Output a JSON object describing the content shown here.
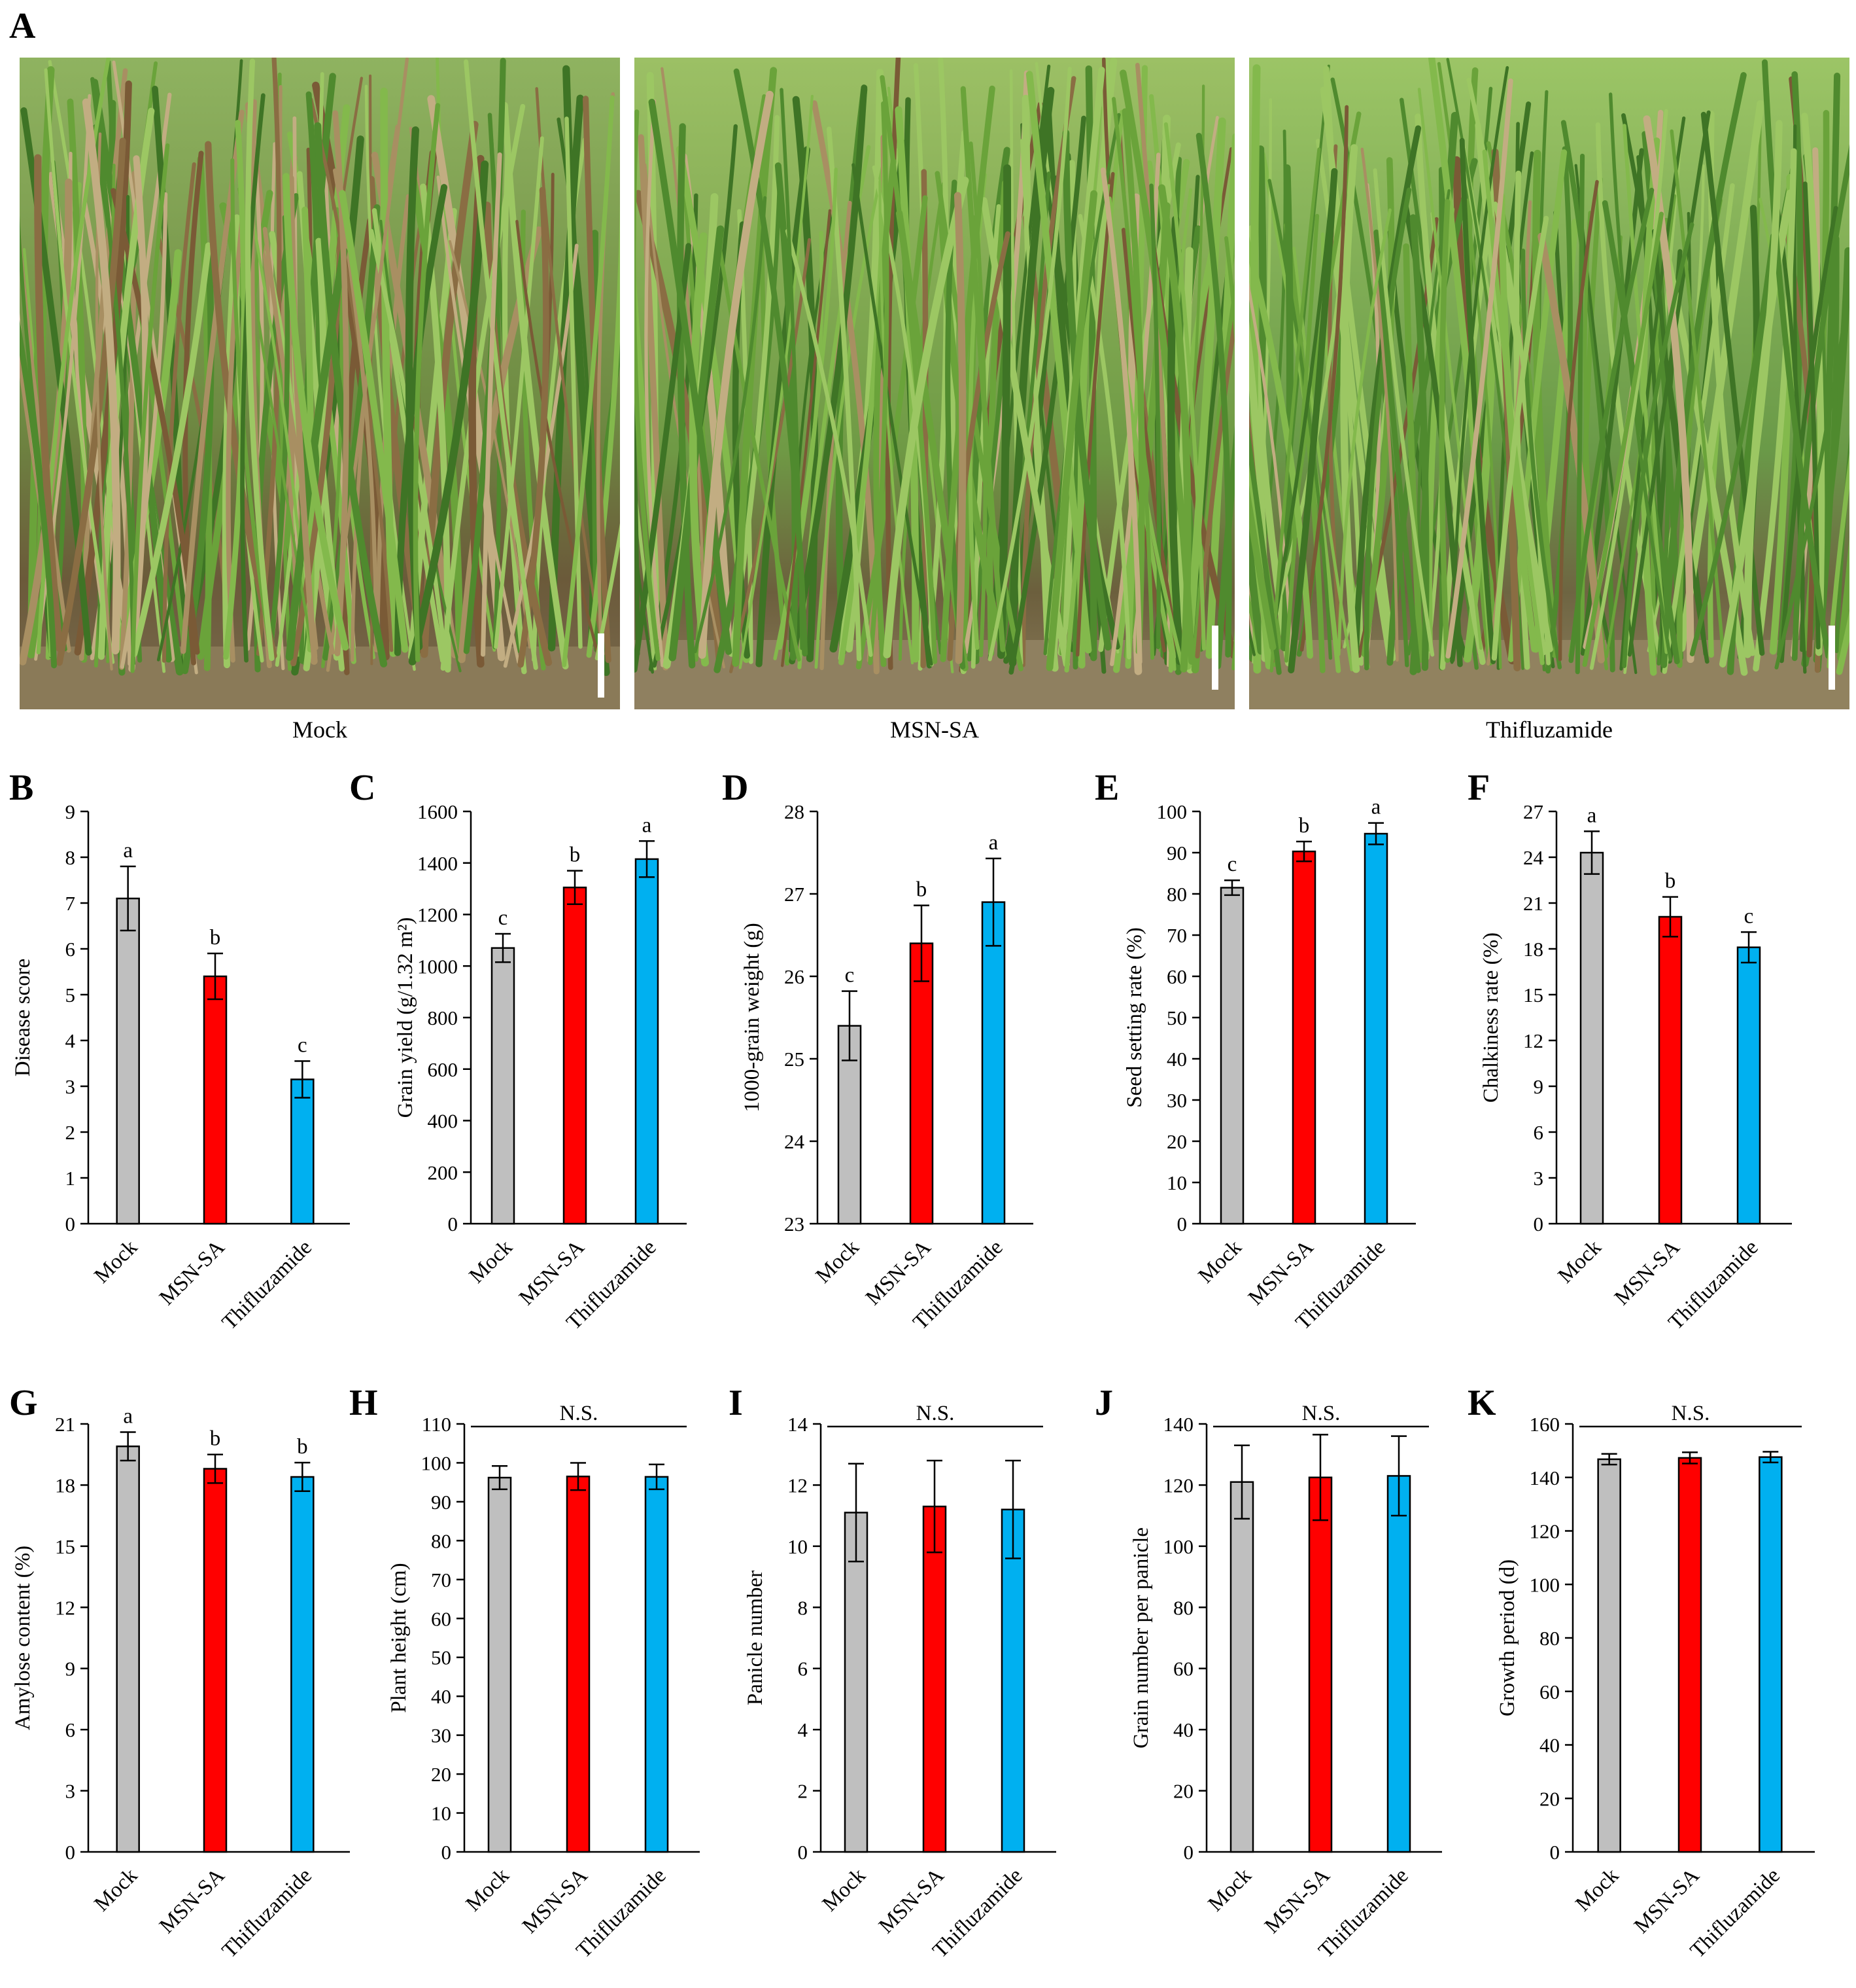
{
  "panel_labels": [
    "A",
    "B",
    "C",
    "D",
    "E",
    "F",
    "G",
    "H",
    "I",
    "J",
    "K"
  ],
  "colors": {
    "mock": "#bfbfbf",
    "msn_sa": "#ff0000",
    "thifluzamide": "#00b0f0",
    "axis": "#000000"
  },
  "photos": [
    {
      "caption": "Mock",
      "letter": "A"
    },
    {
      "caption": "MSN-SA"
    },
    {
      "caption": "Thifluzamide"
    }
  ],
  "chart_data": [
    {
      "letter": "B",
      "type": "bar",
      "categories": [
        "Mock",
        "MSN-SA",
        "Thifluzamide"
      ],
      "values": [
        7.1,
        5.4,
        3.15
      ],
      "errors": [
        0.7,
        0.5,
        0.4
      ],
      "sig": [
        "a",
        "b",
        "c"
      ],
      "ylabel": "Disease score",
      "ylim": [
        0,
        9
      ],
      "ticks": [
        0,
        1,
        2,
        3,
        4,
        5,
        6,
        7,
        8,
        9
      ],
      "ns": ""
    },
    {
      "letter": "C",
      "type": "bar",
      "categories": [
        "Mock",
        "MSN-SA",
        "Thifluzamide"
      ],
      "values": [
        1070,
        1305,
        1415
      ],
      "errors": [
        55,
        65,
        70
      ],
      "sig": [
        "c",
        "b",
        "a"
      ],
      "ylabel": "Grain yield (g/1.32 m²)",
      "ylim": [
        0,
        1600
      ],
      "ticks": [
        0,
        200,
        400,
        600,
        800,
        1000,
        1200,
        1400,
        1600
      ],
      "ns": ""
    },
    {
      "letter": "D",
      "type": "bar",
      "categories": [
        "Mock",
        "MSN-SA",
        "Thifluzamide"
      ],
      "values": [
        25.4,
        26.4,
        26.9
      ],
      "errors": [
        0.42,
        0.46,
        0.53
      ],
      "sig": [
        "c",
        "b",
        "a"
      ],
      "ylabel": "1000-grain weight (g)",
      "ylim": [
        23,
        28
      ],
      "ticks": [
        23,
        24,
        25,
        26,
        27,
        28
      ],
      "ns": ""
    },
    {
      "letter": "E",
      "type": "bar",
      "categories": [
        "Mock",
        "MSN-SA",
        "Thifluzamide"
      ],
      "values": [
        81.5,
        90.3,
        94.6
      ],
      "errors": [
        1.8,
        2.4,
        2.6
      ],
      "sig": [
        "c",
        "b",
        "a"
      ],
      "ylabel": "Seed setting rate (%)",
      "ylim": [
        0,
        100
      ],
      "ticks": [
        0,
        10,
        20,
        30,
        40,
        50,
        60,
        70,
        80,
        90,
        100
      ],
      "ns": ""
    },
    {
      "letter": "F",
      "type": "bar",
      "categories": [
        "Mock",
        "MSN-SA",
        "Thifluzamide"
      ],
      "values": [
        24.3,
        20.1,
        18.1
      ],
      "errors": [
        1.4,
        1.3,
        1.0
      ],
      "sig": [
        "a",
        "b",
        "c"
      ],
      "ylabel": "Chalkiness rate (%)",
      "ylim": [
        0,
        27
      ],
      "ticks": [
        0,
        3,
        6,
        9,
        12,
        15,
        18,
        21,
        24,
        27
      ],
      "ns": ""
    },
    {
      "letter": "G",
      "type": "bar",
      "categories": [
        "Mock",
        "MSN-SA",
        "Thifluzamide"
      ],
      "values": [
        19.9,
        18.8,
        18.4
      ],
      "errors": [
        0.7,
        0.7,
        0.7
      ],
      "sig": [
        "a",
        "b",
        "b"
      ],
      "ylabel": "Amylose content (%)",
      "ylim": [
        0,
        21
      ],
      "ticks": [
        0,
        3,
        6,
        9,
        12,
        15,
        18,
        21
      ],
      "ns": ""
    },
    {
      "letter": "H",
      "type": "bar",
      "categories": [
        "Mock",
        "MSN-SA",
        "Thifluzamide"
      ],
      "values": [
        96.2,
        96.5,
        96.4
      ],
      "errors": [
        3.0,
        3.5,
        3.2
      ],
      "sig": [
        "",
        "",
        ""
      ],
      "ylabel": "Plant height (cm)",
      "ylim": [
        0,
        110
      ],
      "ticks": [
        0,
        10,
        20,
        30,
        40,
        50,
        60,
        70,
        80,
        90,
        100,
        110
      ],
      "ns": "N.S."
    },
    {
      "letter": "I",
      "type": "bar",
      "categories": [
        "Mock",
        "MSN-SA",
        "Thifluzamide"
      ],
      "values": [
        11.1,
        11.3,
        11.2
      ],
      "errors": [
        1.6,
        1.5,
        1.6
      ],
      "sig": [
        "",
        "",
        ""
      ],
      "ylabel": "Panicle number",
      "ylim": [
        0,
        14
      ],
      "ticks": [
        0,
        2,
        4,
        6,
        8,
        10,
        12,
        14
      ],
      "ns": "N.S."
    },
    {
      "letter": "J",
      "type": "bar",
      "categories": [
        "Mock",
        "MSN-SA",
        "Thifluzamide"
      ],
      "values": [
        121,
        122.5,
        123
      ],
      "errors": [
        12,
        14,
        13
      ],
      "sig": [
        "",
        "",
        ""
      ],
      "ylabel": "Grain number per panicle",
      "ylim": [
        0,
        140
      ],
      "ticks": [
        0,
        20,
        40,
        60,
        80,
        100,
        120,
        140
      ],
      "ns": "N.S."
    },
    {
      "letter": "K",
      "type": "bar",
      "categories": [
        "Mock",
        "MSN-SA",
        "Thifluzamide"
      ],
      "values": [
        146.8,
        147.3,
        147.6
      ],
      "errors": [
        2.0,
        2.1,
        2.0
      ],
      "sig": [
        "",
        "",
        ""
      ],
      "ylabel": "Growth period (d)",
      "ylim": [
        0,
        160
      ],
      "ticks": [
        0,
        20,
        40,
        60,
        80,
        100,
        120,
        140,
        160
      ],
      "ns": "N.S."
    }
  ]
}
